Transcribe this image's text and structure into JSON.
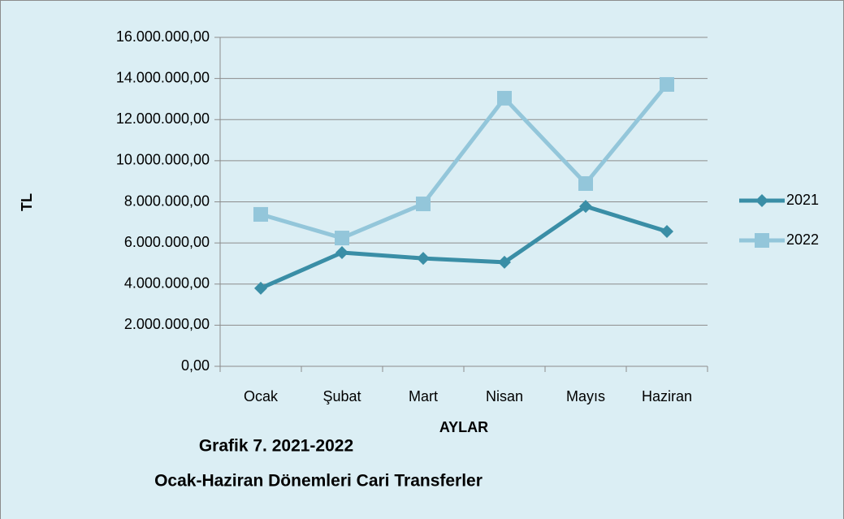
{
  "chart_data": {
    "type": "line",
    "title": "Grafik 7. 2021-2022",
    "subtitle": "Ocak-Haziran Dönemleri Cari Transferler",
    "y_label": "TL",
    "x_label": "AYLAR",
    "categories": [
      "Ocak",
      "Şubat",
      "Mart",
      "Nisan",
      "Mayıs",
      "Haziran"
    ],
    "series": [
      {
        "name": "2021",
        "color": "#3a8ea6",
        "marker": "diamond",
        "values": [
          3800000,
          5530000,
          5250000,
          5060000,
          7780000,
          6560000
        ]
      },
      {
        "name": "2022",
        "color": "#93c6da",
        "marker": "square",
        "values": [
          7390000,
          6240000,
          7900000,
          13040000,
          8890000,
          13710000
        ]
      }
    ],
    "ylim": [
      0,
      16000000
    ],
    "yticks": [
      {
        "value": 0,
        "label": "0,00"
      },
      {
        "value": 2000000,
        "label": "2.000.000,00"
      },
      {
        "value": 4000000,
        "label": "4.000.000,00"
      },
      {
        "value": 6000000,
        "label": "6.000.000,00"
      },
      {
        "value": 8000000,
        "label": "8.000.000,00"
      },
      {
        "value": 10000000,
        "label": "10.000.000,00"
      },
      {
        "value": 12000000,
        "label": "12.000.000,00"
      },
      {
        "value": 14000000,
        "label": "14.000.000,00"
      },
      {
        "value": 16000000,
        "label": "16.000.000,00"
      }
    ],
    "grid": true,
    "legend": "right"
  }
}
